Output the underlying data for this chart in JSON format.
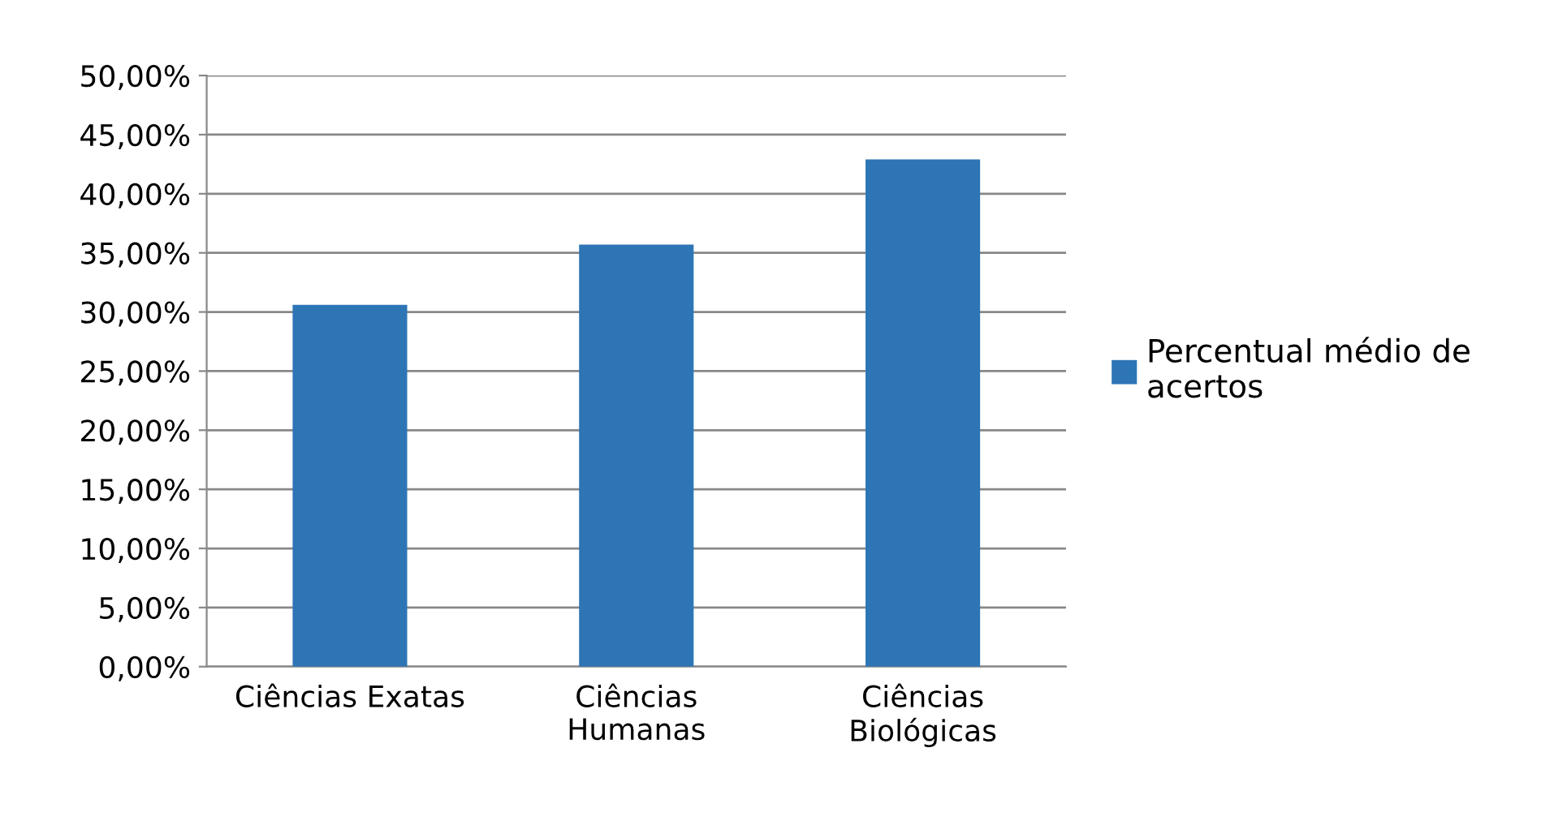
{
  "chart_data": {
    "type": "bar",
    "categories": [
      "Ciências Exatas",
      "Ciências\nHumanas",
      "Ciências\nBiológicas"
    ],
    "series": [
      {
        "name": "Percentual médio de\nacertos",
        "color": "#2e75b6",
        "values": [
          30.6,
          35.7,
          42.9
        ]
      }
    ],
    "ylim": [
      0,
      50
    ],
    "yticks": [
      {
        "value": 0,
        "label": "0,00%"
      },
      {
        "value": 5,
        "label": "5,00%"
      },
      {
        "value": 10,
        "label": "10,00%"
      },
      {
        "value": 15,
        "label": "15,00%"
      },
      {
        "value": 20,
        "label": "20,00%"
      },
      {
        "value": 25,
        "label": "25,00%"
      },
      {
        "value": 30,
        "label": "30,00%"
      },
      {
        "value": 35,
        "label": "35,00%"
      },
      {
        "value": 40,
        "label": "40,00%"
      },
      {
        "value": 45,
        "label": "45,00%"
      },
      {
        "value": 50,
        "label": "50,00%"
      }
    ],
    "grid": "y",
    "legend": "right"
  }
}
